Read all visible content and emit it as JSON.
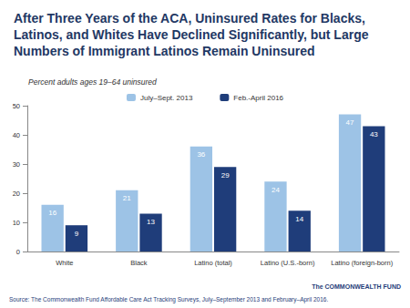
{
  "chart_data": {
    "type": "bar",
    "title": "After Three Years of the ACA, Uninsured Rates for Blacks, Latinos, and Whites Have Declined Significantly, but Large Numbers of Immigrant Latinos Remain Uninsured",
    "subtitle": "Percent adults ages 19–64 uninsured",
    "categories": [
      "White",
      "Black",
      "Latino (total)",
      "Latino (U.S.-born)",
      "Latino (foreign-born)"
    ],
    "series": [
      {
        "name": "July–Sept. 2013",
        "color": "#9dc3e6",
        "values": [
          16,
          21,
          36,
          24,
          47
        ]
      },
      {
        "name": "Feb.-April 2016",
        "color": "#1f3d7a",
        "values": [
          9,
          13,
          29,
          14,
          43
        ]
      }
    ],
    "ylim": [
      0,
      50
    ],
    "yticks": [
      0,
      10,
      20,
      30,
      40,
      50
    ],
    "grid": false,
    "legend": "top",
    "data_labels": true,
    "annotations": [
      "Source: The Commonwealth Fund Affordable Care Act Tracking Surveys, July–September 2013 and February–April 2016.",
      "The COMMONWEALTH FUND"
    ]
  }
}
